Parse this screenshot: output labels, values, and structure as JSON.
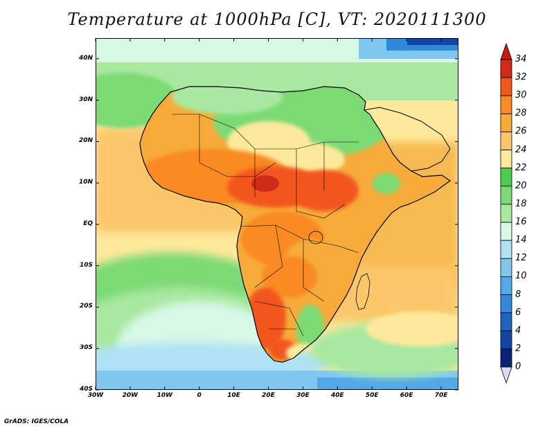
{
  "title": "Temperature at 1000hPa [C], VT: 2020111300",
  "footer": "GrADS: IGES/COLA",
  "map": {
    "lat_labels": [
      "40N",
      "30N",
      "20N",
      "10N",
      "EQ",
      "10S",
      "20S",
      "30S",
      "40S"
    ],
    "lat_values": [
      40,
      30,
      20,
      10,
      0,
      -10,
      -20,
      -30,
      -40
    ],
    "lon_labels": [
      "30W",
      "20W",
      "10W",
      "0",
      "10E",
      "20E",
      "30E",
      "40E",
      "50E",
      "60E",
      "70E"
    ],
    "lon_values": [
      -30,
      -20,
      -10,
      0,
      10,
      20,
      30,
      40,
      50,
      60,
      70
    ],
    "lon_range": [
      -30,
      75
    ],
    "lat_range": [
      -40,
      45
    ]
  },
  "colorbar": {
    "labels": [
      "34",
      "32",
      "30",
      "28",
      "26",
      "24",
      "22",
      "20",
      "18",
      "16",
      "14",
      "12",
      "10",
      "8",
      "6",
      "4",
      "2",
      "0"
    ],
    "colors": [
      "#d12a1a",
      "#f2571b",
      "#fa8a23",
      "#f6ab3a",
      "#fbc76a",
      "#fde99b",
      "#4ccd4e",
      "#7cda74",
      "#a8e8a0",
      "#d8f8e6",
      "#aee2f4",
      "#80c8f0",
      "#54a8e8",
      "#3288d9",
      "#1e63bf",
      "#1345a6",
      "#0a2278"
    ],
    "extend_top": "#c81c10",
    "extend_bottom": "#dcdcfc"
  }
}
